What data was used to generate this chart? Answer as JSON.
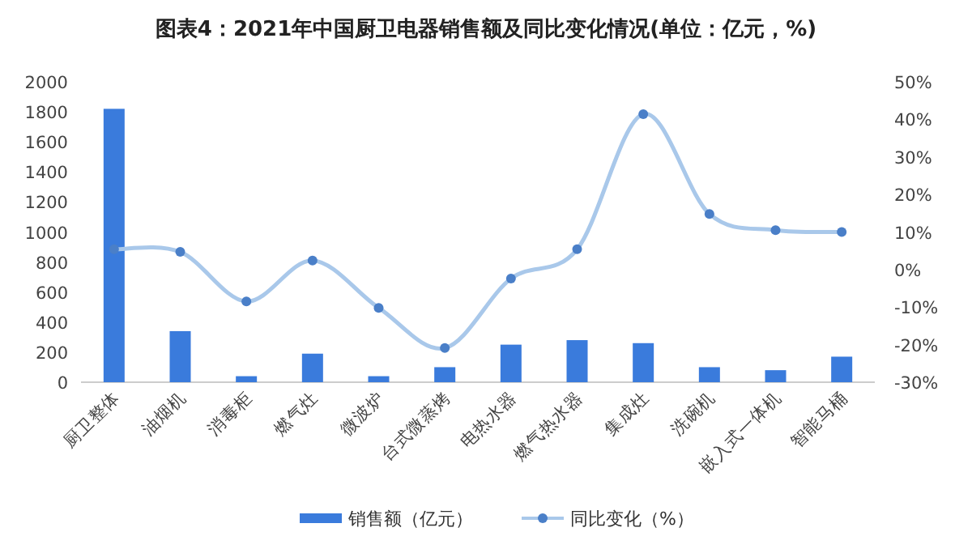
{
  "chart_data": {
    "type": "bar",
    "title": "图表4：2021年中国厨卫电器销售额及同比变化情况(单位：亿元，%)",
    "categories": [
      "厨卫整体",
      "油烟机",
      "消毒柜",
      "燃气灶",
      "微波炉",
      "台式微蒸烤",
      "电热水器",
      "燃气热水器",
      "集成灶",
      "洗碗机",
      "嵌入式一体机",
      "智能马桶"
    ],
    "series": [
      {
        "name": "销售额（亿元）",
        "color": "#3a7bdc",
        "values": [
          1820,
          340,
          40,
          190,
          40,
          100,
          250,
          280,
          260,
          100,
          80,
          170
        ]
      },
      {
        "name": "同比变化（%）",
        "type": "line",
        "axis": "y2",
        "color": "#a9c8ea",
        "values": [
          5.4,
          4.7,
          -8.5,
          2.4,
          -10.2,
          -20.9,
          -2.4,
          5.4,
          41.4,
          14.8,
          10.5,
          10.0
        ]
      }
    ],
    "ylim": [
      0,
      2000
    ],
    "yticks": [
      0,
      200,
      400,
      600,
      800,
      1000,
      1200,
      1400,
      1600,
      1800,
      2000
    ],
    "y2lim": [
      -30,
      50
    ],
    "y2ticks": [
      {
        "value": -30,
        "label": "-30%"
      },
      {
        "value": -20,
        "label": "-20%"
      },
      {
        "value": -10,
        "label": "-10%"
      },
      {
        "value": 0,
        "label": "0%"
      },
      {
        "value": 10,
        "label": "10%"
      },
      {
        "value": 20,
        "label": "20%"
      },
      {
        "value": 30,
        "label": "30%"
      },
      {
        "value": 40,
        "label": "40%"
      },
      {
        "value": 50,
        "label": "50%"
      }
    ],
    "legend": "bottom",
    "marker": "circle"
  }
}
